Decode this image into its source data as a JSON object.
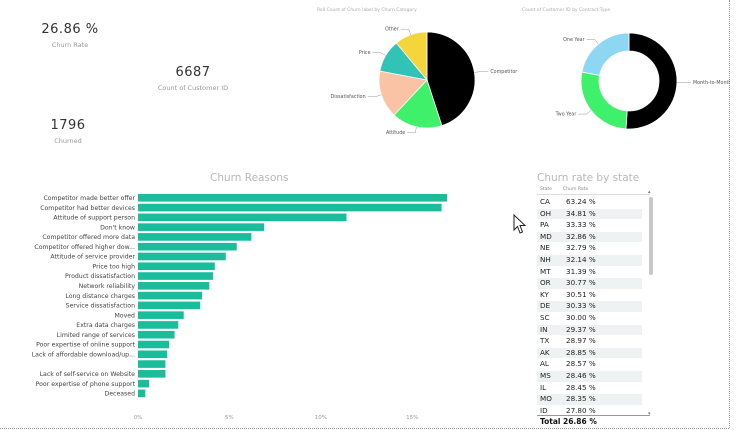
{
  "kpis": {
    "churn_rate": {
      "value": "26.86 %",
      "label": "Churn Rate"
    },
    "customers": {
      "value": "6687",
      "label": "Count of Customer ID"
    },
    "churned": {
      "value": "1796",
      "label": "Churned"
    }
  },
  "pie_category": {
    "title": "Roll Count of Churn label by Churn Category",
    "slices": [
      {
        "label": "Competitor",
        "value": 45,
        "color": "#000000"
      },
      {
        "label": "Attitude",
        "value": 17,
        "color": "#3ef06a"
      },
      {
        "label": "Dissatisfaction",
        "value": 16,
        "color": "#fbc3a5"
      },
      {
        "label": "Price",
        "value": 11,
        "color": "#31c3b6"
      },
      {
        "label": "Other",
        "value": 11,
        "color": "#f4d63c"
      }
    ]
  },
  "donut_contract": {
    "title": "Count of Customer ID by Contract Type",
    "slices": [
      {
        "label": "Month-to-Month",
        "value": 51,
        "color": "#000000"
      },
      {
        "label": "Two Year",
        "value": 27,
        "color": "#3ef06a"
      },
      {
        "label": "One Year",
        "value": 22,
        "color": "#8ed7f3"
      }
    ]
  },
  "reasons": {
    "title": "Churn Reasons",
    "bar_color": "#1abc9c",
    "chart_data": {
      "type": "bar",
      "orientation": "horizontal",
      "categories": [
        "Competitor made better offer",
        "Competitor had better devices",
        "Attitude of support person",
        "Don't know",
        "Competitor offered more data",
        "Competitor offered higher dow...",
        "Attitude of service provider",
        "Price too high",
        "Product dissatisfaction",
        "Network reliability",
        "Long distance charges",
        "Service dissatisfaction",
        "Moved",
        "Extra data charges",
        "Limited range of services",
        "Poor expertise of online support",
        "Lack of affordable download/up...",
        "",
        "Lack of self-service on Website",
        "Poor expertise of phone support",
        "Deceased"
      ],
      "values": [
        16.9,
        16.6,
        11.4,
        6.9,
        6.2,
        5.4,
        4.8,
        4.2,
        4.1,
        3.9,
        3.5,
        3.4,
        2.5,
        2.2,
        2.0,
        1.7,
        1.6,
        1.5,
        1.5,
        0.6,
        0.4
      ],
      "xlim": [
        0,
        17.5
      ],
      "xticks": [
        {
          "value": 0,
          "label": "0%"
        },
        {
          "value": 5,
          "label": "5%"
        },
        {
          "value": 10,
          "label": "10%"
        },
        {
          "value": 15,
          "label": "15%"
        }
      ]
    }
  },
  "state_table": {
    "title": "Churn rate by state",
    "headers": [
      "State",
      "Churn Rate"
    ],
    "rows": [
      [
        "CA",
        "63.24 %"
      ],
      [
        "OH",
        "34.81 %"
      ],
      [
        "PA",
        "33.33 %"
      ],
      [
        "MD",
        "32.86 %"
      ],
      [
        "NE",
        "32.79 %"
      ],
      [
        "NH",
        "32.14 %"
      ],
      [
        "MT",
        "31.39 %"
      ],
      [
        "OR",
        "30.77 %"
      ],
      [
        "KY",
        "30.51 %"
      ],
      [
        "DE",
        "30.33 %"
      ],
      [
        "SC",
        "30.00 %"
      ],
      [
        "IN",
        "29.37 %"
      ],
      [
        "TX",
        "28.97 %"
      ],
      [
        "AK",
        "28.85 %"
      ],
      [
        "AL",
        "28.57 %"
      ],
      [
        "MS",
        "28.46 %"
      ],
      [
        "IL",
        "28.45 %"
      ],
      [
        "MO",
        "28.35 %"
      ],
      [
        "ID",
        "27.80 %"
      ]
    ],
    "total_label": "Total",
    "total_value": "26.86 %"
  }
}
